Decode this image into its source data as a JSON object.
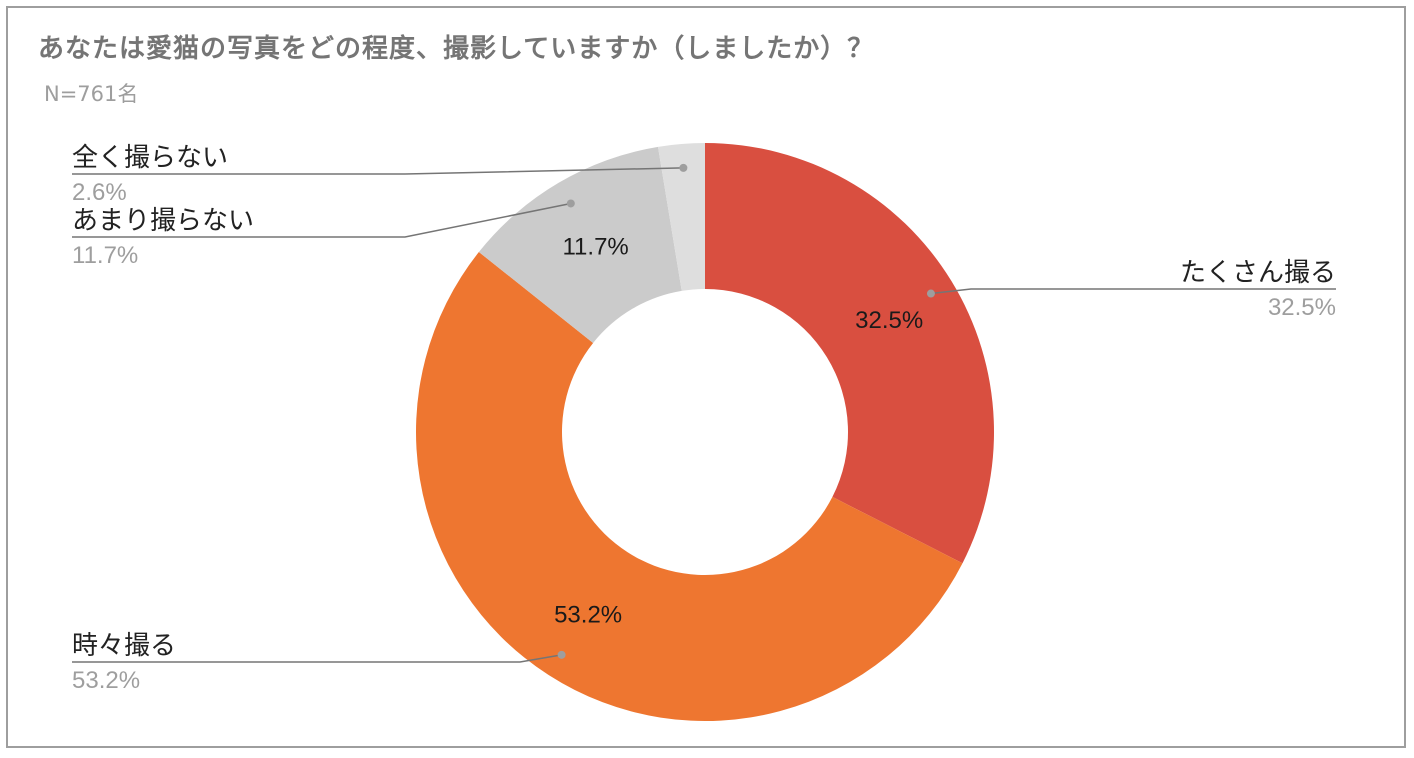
{
  "chart_data": {
    "type": "pie",
    "donut": true,
    "title": "あなたは愛猫の写真をどの程度、撮影していますか（しましたか）？",
    "subtitle": "N=761名",
    "slices": [
      {
        "label": "たくさん撮る",
        "value": 32.5,
        "display": "32.5%",
        "color": "#d94f40"
      },
      {
        "label": "時々撮る",
        "value": 53.2,
        "display": "53.2%",
        "color": "#ee7630"
      },
      {
        "label": "あまり撮らない",
        "value": 11.7,
        "display": "11.7%",
        "color": "#cbcbcb"
      },
      {
        "label": "全く撮らない",
        "value": 2.6,
        "display": "2.6%",
        "color": "#dedede"
      }
    ],
    "legend": "callouts"
  }
}
